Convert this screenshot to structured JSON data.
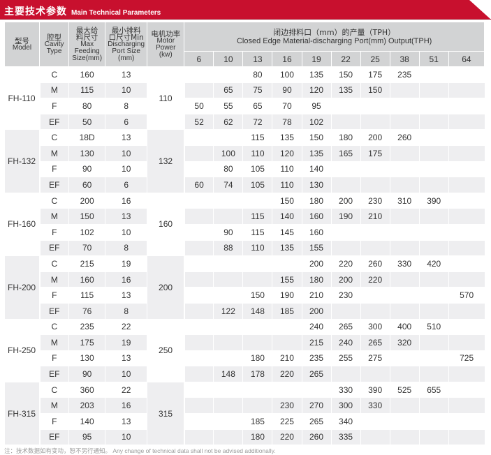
{
  "header": {
    "title_cn": "主要技术参数",
    "title_en": "Main Technical Parameters",
    "accent_color": "#c8102e"
  },
  "columns": {
    "model": {
      "cn": "型号",
      "en": "Model"
    },
    "cavity": {
      "cn": "腔型",
      "en1": "Cavity",
      "en2": "Type"
    },
    "feeding": {
      "cn1": "最大给",
      "cn2": "料尺寸",
      "en1": "Max",
      "en2": "Feeding",
      "en3": "Size(mm)"
    },
    "discharge": {
      "cn1": "最小排料",
      "cn2": "口尺寸Min",
      "en1": "Discharging",
      "en2": "Port Size",
      "en3": "(mm)"
    },
    "motor": {
      "cn": "电机功率",
      "en1": "Motor",
      "en2": "Power",
      "en3": "(kw)"
    },
    "output": {
      "cn": "闭边排料口（mm）的产量（TPH）",
      "en": "Closed Edge Material-discharging Port(mm) Output(TPH)"
    },
    "ports": [
      "6",
      "10",
      "13",
      "16",
      "19",
      "22",
      "25",
      "38",
      "51",
      "64"
    ]
  },
  "groups": [
    {
      "model": "FH-110",
      "motor": "110",
      "rows": [
        {
          "cavity": "C",
          "feed": "160",
          "port": "13",
          "values": [
            "",
            "",
            "80",
            "100",
            "135",
            "150",
            "175",
            "235",
            "",
            ""
          ]
        },
        {
          "cavity": "M",
          "feed": "115",
          "port": "10",
          "values": [
            "",
            "65",
            "75",
            "90",
            "120",
            "135",
            "150",
            "",
            "",
            ""
          ]
        },
        {
          "cavity": "F",
          "feed": "80",
          "port": "8",
          "values": [
            "50",
            "55",
            "65",
            "70",
            "95",
            "",
            "",
            "",
            "",
            ""
          ]
        },
        {
          "cavity": "EF",
          "feed": "50",
          "port": "6",
          "values": [
            "52",
            "62",
            "72",
            "78",
            "102",
            "",
            "",
            "",
            "",
            ""
          ]
        }
      ]
    },
    {
      "model": "FH-132",
      "motor": "132",
      "rows": [
        {
          "cavity": "C",
          "feed": "18D",
          "port": "13",
          "values": [
            "",
            "",
            "115",
            "135",
            "150",
            "180",
            "200",
            "260",
            "",
            ""
          ]
        },
        {
          "cavity": "M",
          "feed": "130",
          "port": "10",
          "values": [
            "",
            "100",
            "110",
            "120",
            "135",
            "165",
            "175",
            "",
            "",
            ""
          ]
        },
        {
          "cavity": "F",
          "feed": "90",
          "port": "10",
          "values": [
            "",
            "80",
            "105",
            "110",
            "140",
            "",
            "",
            "",
            "",
            ""
          ]
        },
        {
          "cavity": "EF",
          "feed": "60",
          "port": "6",
          "values": [
            "60",
            "74",
            "105",
            "110",
            "130",
            "",
            "",
            "",
            "",
            ""
          ]
        }
      ]
    },
    {
      "model": "FH-160",
      "motor": "160",
      "rows": [
        {
          "cavity": "C",
          "feed": "200",
          "port": "16",
          "values": [
            "",
            "",
            "",
            "150",
            "180",
            "200",
            "230",
            "310",
            "390",
            ""
          ]
        },
        {
          "cavity": "M",
          "feed": "150",
          "port": "13",
          "values": [
            "",
            "",
            "115",
            "140",
            "160",
            "190",
            "210",
            "",
            "",
            ""
          ]
        },
        {
          "cavity": "F",
          "feed": "102",
          "port": "10",
          "values": [
            "",
            "90",
            "115",
            "145",
            "160",
            "",
            "",
            "",
            "",
            ""
          ]
        },
        {
          "cavity": "EF",
          "feed": "70",
          "port": "8",
          "values": [
            "",
            "88",
            "110",
            "135",
            "155",
            "",
            "",
            "",
            "",
            ""
          ]
        }
      ]
    },
    {
      "model": "FH-200",
      "motor": "200",
      "rows": [
        {
          "cavity": "C",
          "feed": "215",
          "port": "19",
          "values": [
            "",
            "",
            "",
            "",
            "200",
            "220",
            "260",
            "330",
            "420",
            ""
          ]
        },
        {
          "cavity": "M",
          "feed": "160",
          "port": "16",
          "values": [
            "",
            "",
            "",
            "155",
            "180",
            "200",
            "220",
            "",
            "",
            ""
          ]
        },
        {
          "cavity": "F",
          "feed": "115",
          "port": "13",
          "values": [
            "",
            "",
            "150",
            "190",
            "210",
            "230",
            "",
            "",
            "",
            "570"
          ]
        },
        {
          "cavity": "EF",
          "feed": "76",
          "port": "8",
          "values": [
            "",
            "122",
            "148",
            "185",
            "200",
            "",
            "",
            "",
            "",
            ""
          ]
        }
      ]
    },
    {
      "model": "FH-250",
      "motor": "250",
      "rows": [
        {
          "cavity": "C",
          "feed": "235",
          "port": "22",
          "values": [
            "",
            "",
            "",
            "",
            "240",
            "265",
            "300",
            "400",
            "510",
            ""
          ]
        },
        {
          "cavity": "M",
          "feed": "175",
          "port": "19",
          "values": [
            "",
            "",
            "",
            "",
            "215",
            "240",
            "265",
            "320",
            "",
            ""
          ]
        },
        {
          "cavity": "F",
          "feed": "130",
          "port": "13",
          "values": [
            "",
            "",
            "180",
            "210",
            "235",
            "255",
            "275",
            "",
            "",
            "725"
          ]
        },
        {
          "cavity": "EF",
          "feed": "90",
          "port": "10",
          "values": [
            "",
            "148",
            "178",
            "220",
            "265",
            "",
            "",
            "",
            "",
            ""
          ]
        }
      ]
    },
    {
      "model": "FH-315",
      "motor": "315",
      "rows": [
        {
          "cavity": "C",
          "feed": "360",
          "port": "22",
          "values": [
            "",
            "",
            "",
            "",
            "",
            "330",
            "390",
            "525",
            "655",
            ""
          ]
        },
        {
          "cavity": "M",
          "feed": "203",
          "port": "16",
          "values": [
            "",
            "",
            "",
            "230",
            "270",
            "300",
            "330",
            "",
            "",
            ""
          ]
        },
        {
          "cavity": "F",
          "feed": "140",
          "port": "13",
          "values": [
            "",
            "",
            "185",
            "225",
            "265",
            "340",
            "",
            "",
            "",
            ""
          ]
        },
        {
          "cavity": "EF",
          "feed": "95",
          "port": "10",
          "values": [
            "",
            "",
            "180",
            "220",
            "260",
            "335",
            "",
            "",
            "",
            ""
          ]
        }
      ]
    }
  ],
  "footnote": "注：技术数据如有变动，恕不另行通知。 Any change of technical data shall not be advised additionally."
}
